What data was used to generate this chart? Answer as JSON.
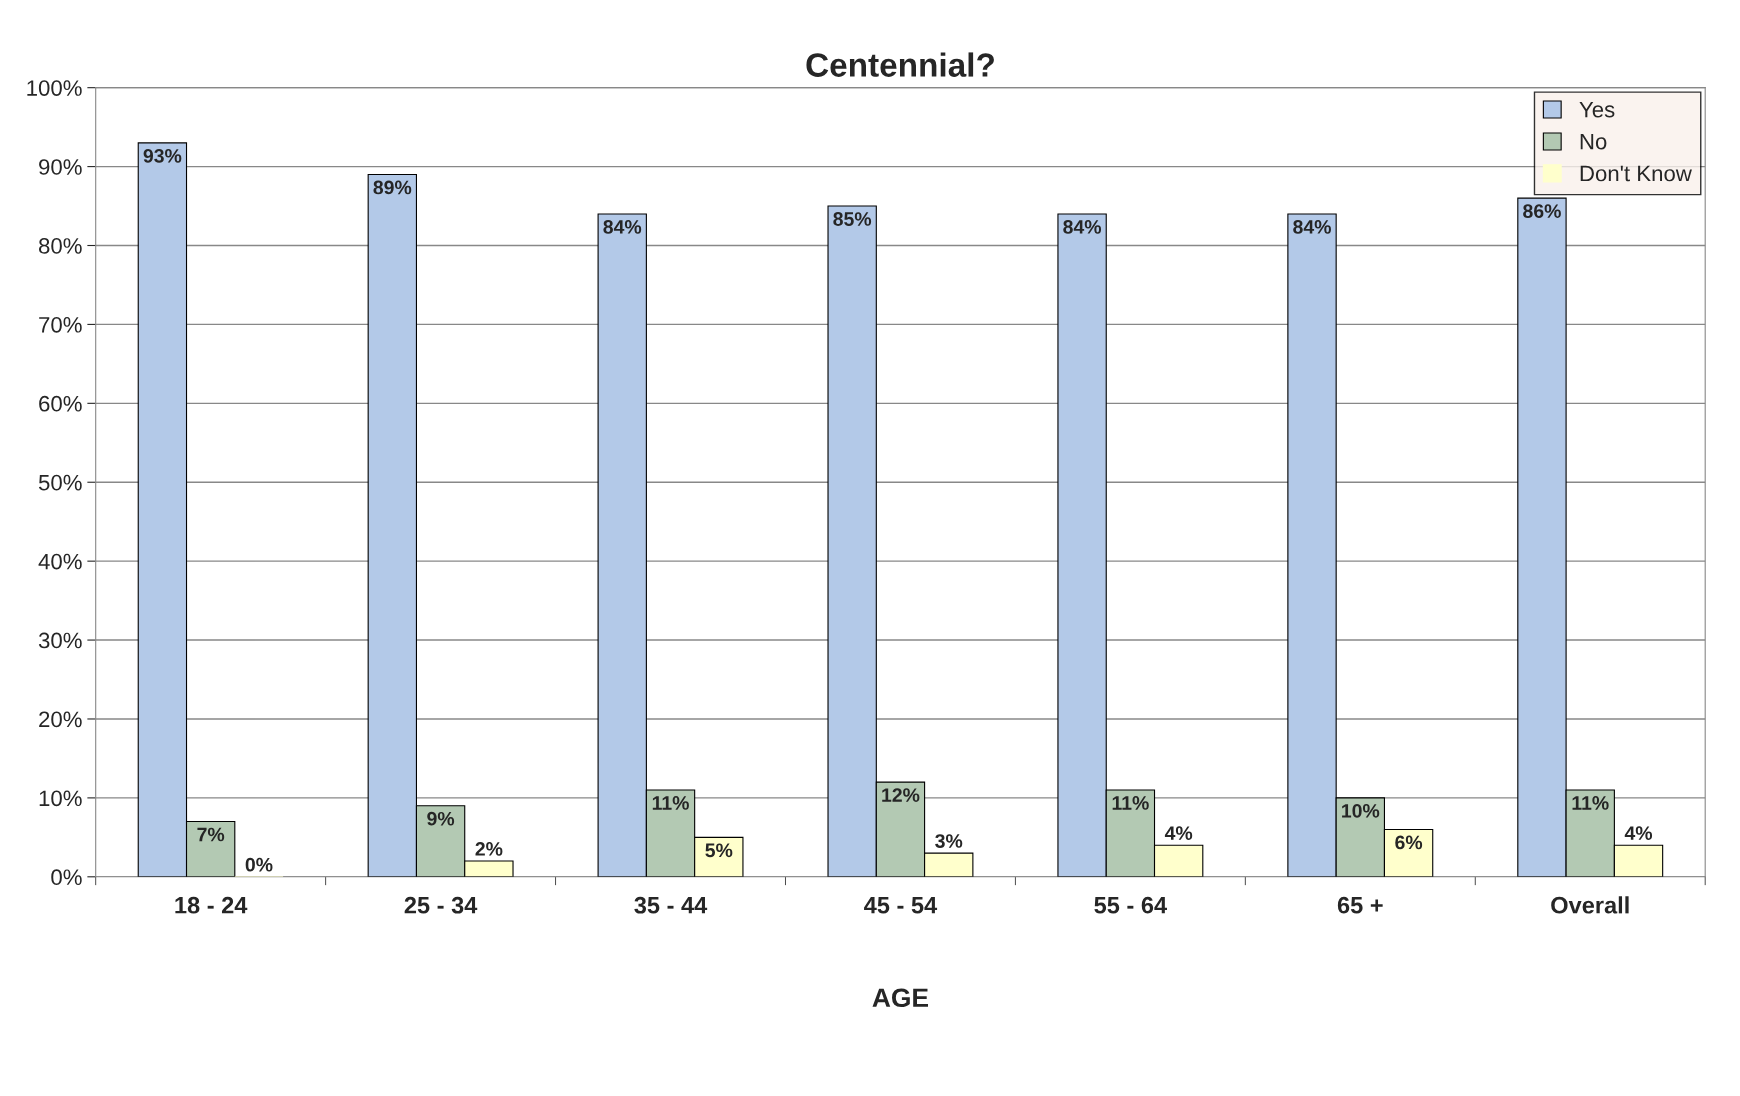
{
  "chart_data": {
    "type": "bar",
    "title": "Centennial?",
    "xlabel": "AGE",
    "categories": [
      "18 - 24",
      "25 - 34",
      "35 - 44",
      "45 - 54",
      "55 - 64",
      "65 +",
      "Overall"
    ],
    "series": [
      {
        "name": "Yes",
        "color": "#b3c9e8",
        "values": [
          93,
          89,
          84,
          85,
          84,
          84,
          86
        ],
        "value_labels": [
          "93%",
          "89%",
          "84%",
          "85%",
          "84%",
          "84%",
          "86%"
        ]
      },
      {
        "name": "No",
        "color": "#b3c9b3",
        "values": [
          7,
          9,
          11,
          12,
          11,
          10,
          11
        ],
        "value_labels": [
          "7%",
          "9%",
          "11%",
          "12%",
          "11%",
          "10%",
          "11%"
        ]
      },
      {
        "name": "Don't Know",
        "color": "#ffffcc",
        "values": [
          0,
          2,
          5,
          3,
          4,
          6,
          4
        ],
        "value_labels": [
          "0%",
          "2%",
          "5%",
          "3%",
          "4%",
          "6%",
          "4%"
        ]
      }
    ],
    "ylim": [
      0,
      100
    ],
    "yticks": [
      {
        "value": 0,
        "label": "0%"
      },
      {
        "value": 10,
        "label": "10%"
      },
      {
        "value": 20,
        "label": "20%"
      },
      {
        "value": 30,
        "label": "30%"
      },
      {
        "value": 40,
        "label": "40%"
      },
      {
        "value": 50,
        "label": "50%"
      },
      {
        "value": 60,
        "label": "60%"
      },
      {
        "value": 70,
        "label": "70%"
      },
      {
        "value": 80,
        "label": "80%"
      },
      {
        "value": 90,
        "label": "90%"
      },
      {
        "value": 100,
        "label": "100%"
      }
    ],
    "grid": "y",
    "legend": "top right"
  }
}
